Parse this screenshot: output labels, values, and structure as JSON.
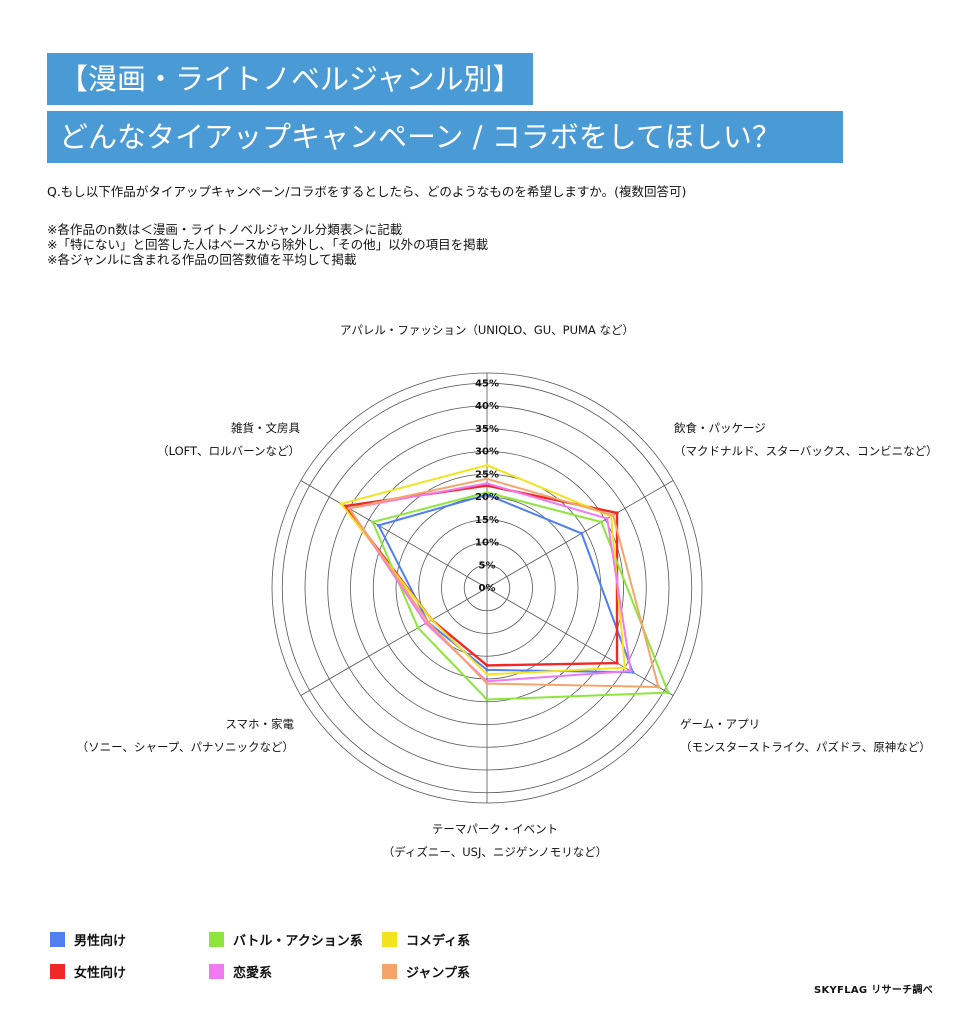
{
  "title_line1": "【漫画・ライトノベルジャンル別】",
  "title_line2": "どんなタイアップキャンペーン / コラボをしてほしい？",
  "question": "Q.もし以下作品がタイアップキャンペーン/コラボをするとしたら、どのようなものを希望しますか。(複数回答可)",
  "notes": [
    "※各作品のn数は＜漫画・ライトノベルジャンル分類表＞に記載",
    "※「特にない」と回答した人はベースから除外し、「その他」以外の項目を掲載",
    "※各ジャンルに含まれる作品の回答数値を平均して掲載"
  ],
  "credit": "SKYFLAG リサーチ調べ",
  "chart_data": {
    "type": "radar",
    "unit": "%",
    "rlim": [
      0,
      45
    ],
    "ticks": [
      "0%",
      "5%",
      "10%",
      "15%",
      "20%",
      "25%",
      "30%",
      "35%",
      "40%",
      "45%"
    ],
    "grid": true,
    "axes": [
      {
        "label": "アパレル・ファッション（UNIQLO、GU、PUMA など）"
      },
      {
        "label": "飲食・パッケージ",
        "sublabel": "（マクドナルド、スターバックス、コンビニなど）"
      },
      {
        "label": "ゲーム・アプリ",
        "sublabel": "（モンスターストライク、パズドラ、原神など）"
      },
      {
        "label": "テーマパーク・イベント",
        "sublabel": "（ディズニー、USJ、ニジゲンノモリなど）"
      },
      {
        "label": "スマホ・家電",
        "sublabel": "（ソニー、シャープ、パナソニックなど）"
      },
      {
        "label": "雑貨・文房具",
        "sublabel": "（LOFT、ロルバーンなど）"
      }
    ],
    "series": [
      {
        "name": "男性向け",
        "color": "#4f7ff0",
        "values": [
          20.5,
          24,
          37,
          18,
          15,
          27.5
        ]
      },
      {
        "name": "女性向け",
        "color": "#f02828",
        "values": [
          22.5,
          33,
          33,
          17,
          14,
          36
        ]
      },
      {
        "name": "バトル・アクション系",
        "color": "#8ee63c",
        "values": [
          21,
          29,
          46,
          24.5,
          17.5,
          29
        ]
      },
      {
        "name": "コメディ系",
        "color": "#f2e41c",
        "values": [
          27,
          31.5,
          35,
          19,
          14,
          37
        ]
      },
      {
        "name": "恋愛系",
        "color": "#f07af0",
        "values": [
          23,
          30.5,
          36.5,
          20.5,
          15.5,
          35
        ]
      },
      {
        "name": "ジャンプ系",
        "color": "#f5a56a",
        "values": [
          24,
          32,
          43.5,
          21,
          15,
          35
        ]
      }
    ],
    "legend_position": "bottom-left"
  }
}
